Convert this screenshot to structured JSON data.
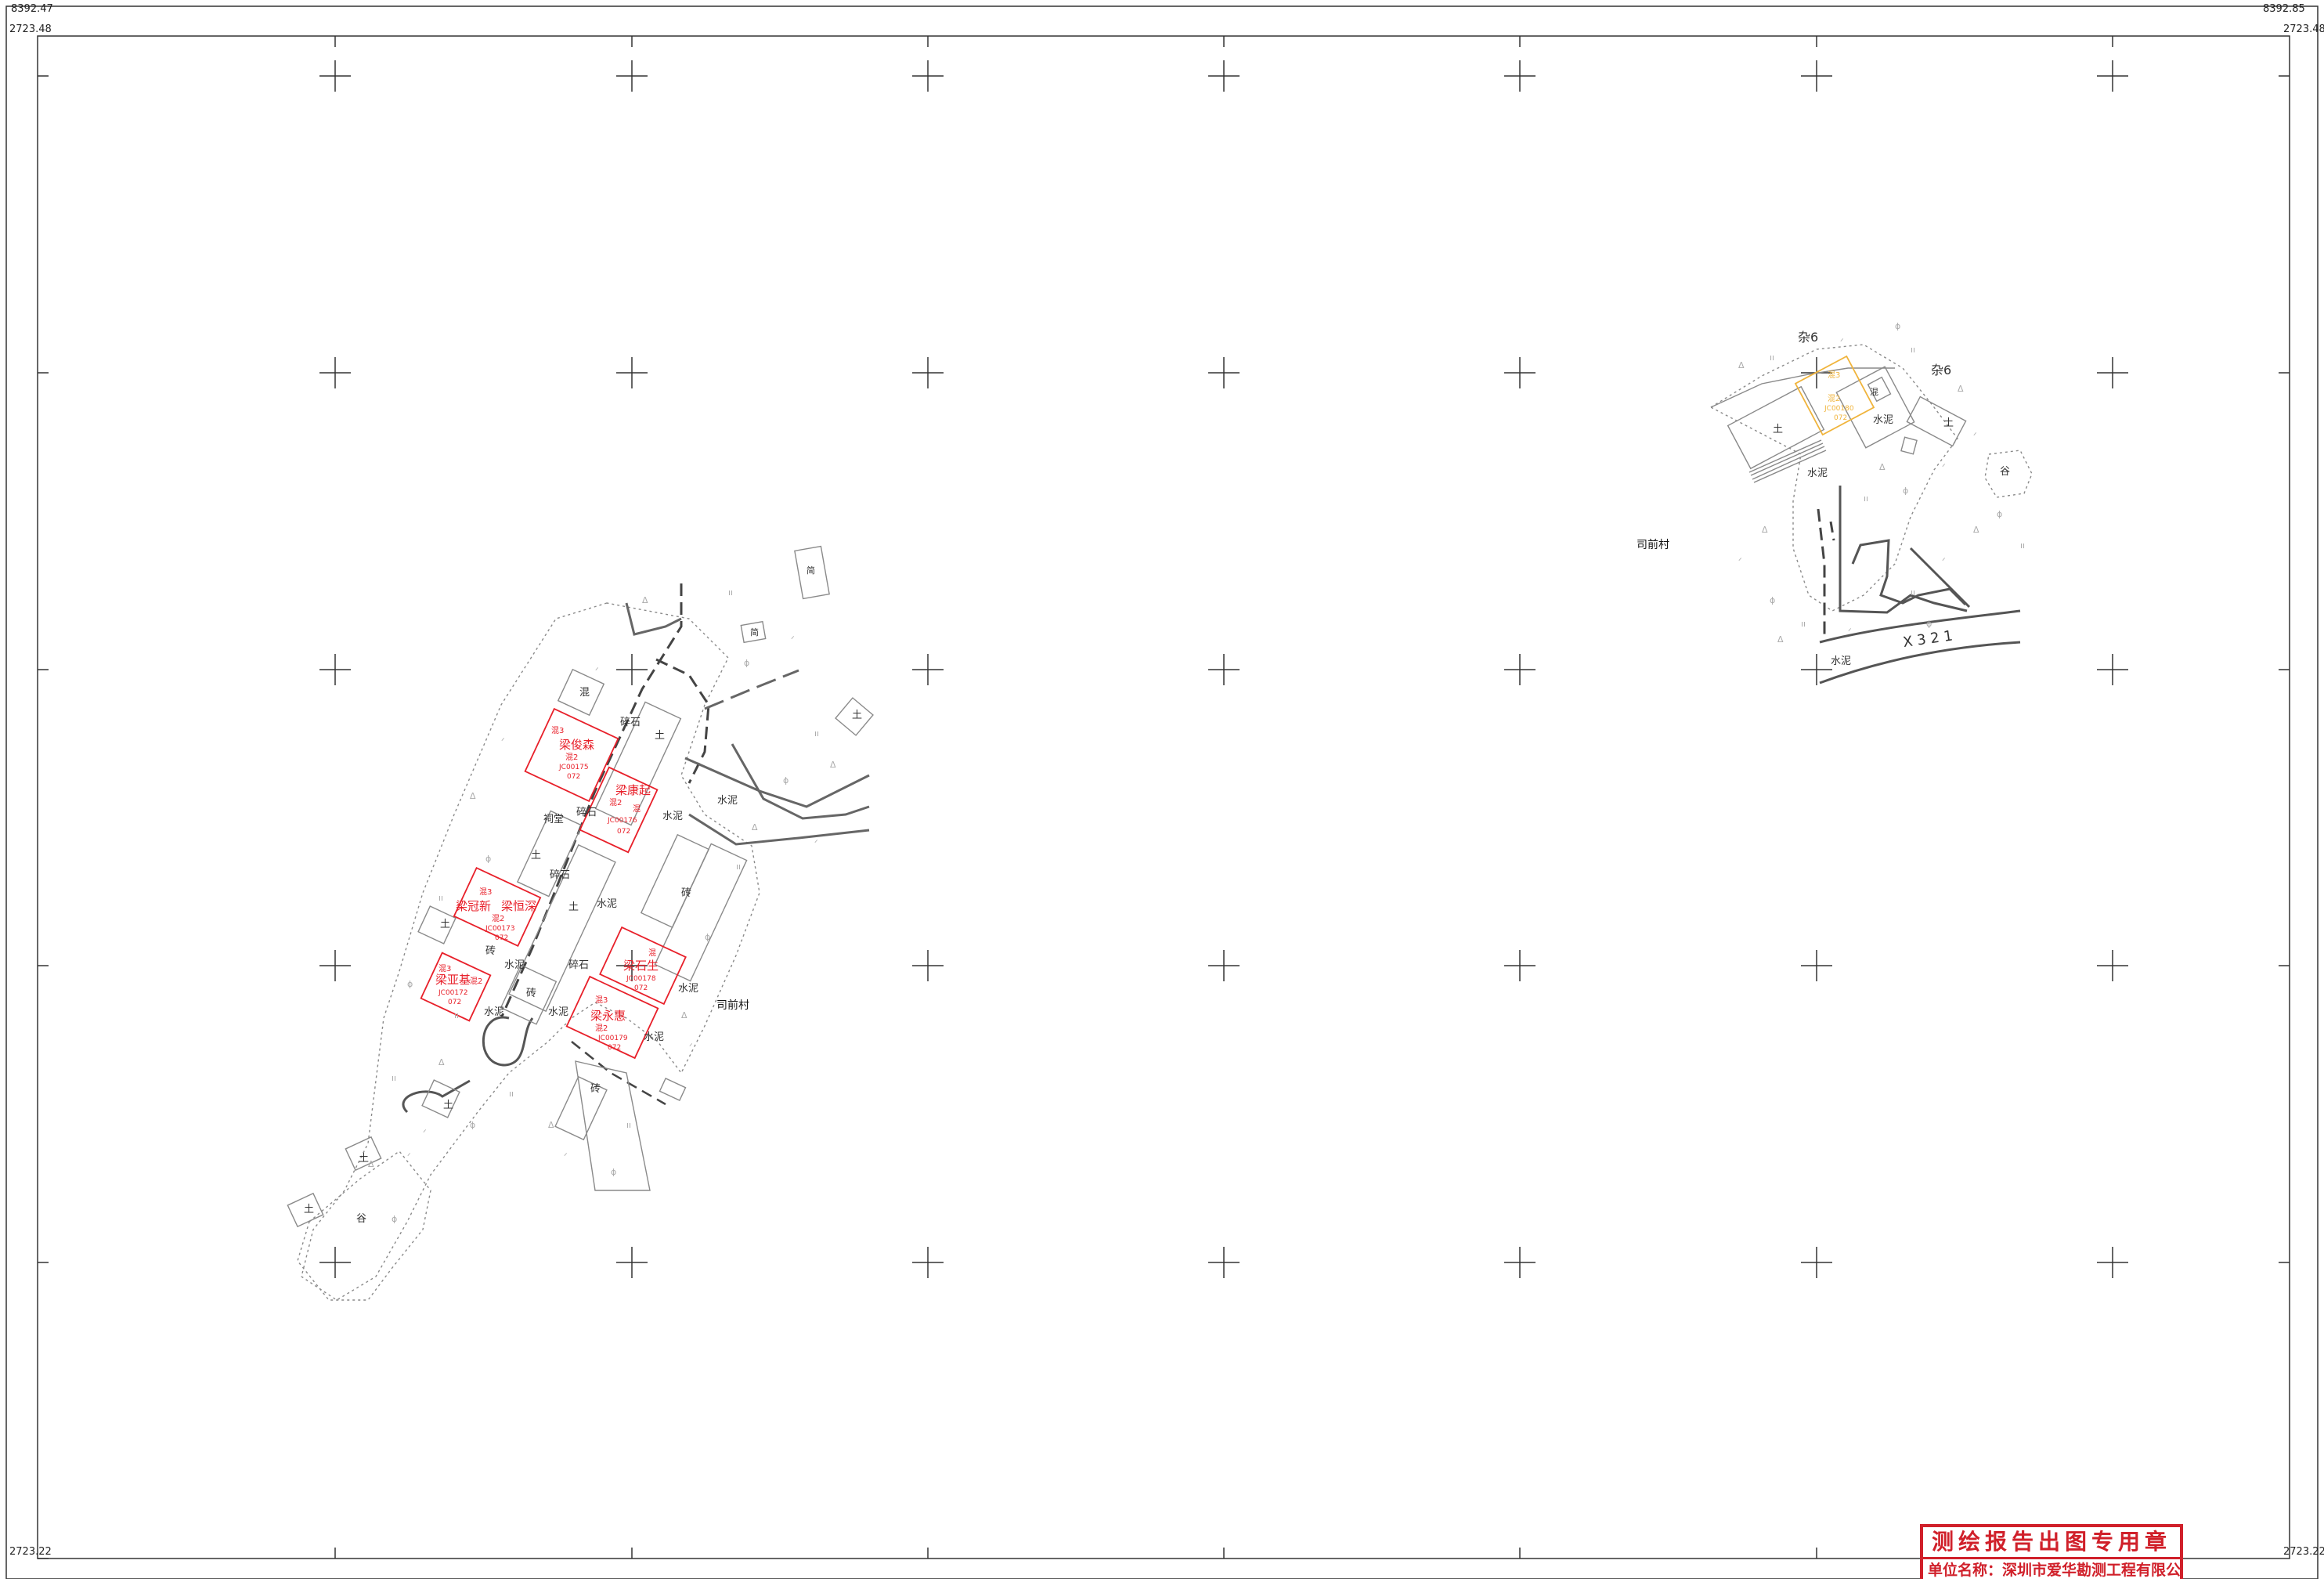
{
  "frame": {
    "coord_top_left": "8392.47",
    "coord_top_right": "8392.85",
    "coord_left_top": "2723.48",
    "coord_right_top": "2723.48",
    "coord_left_bottom": "2723.22",
    "coord_right_bottom": "2723.22"
  },
  "colors": {
    "parcel_red": "#e8202a",
    "parcel_yellow": "#f0b43c",
    "linework": "#8a8a8a",
    "ink": "#222222"
  },
  "left_cluster": {
    "village": "司前村",
    "parcels": [
      {
        "owner": "梁俊森",
        "code": "JC00175",
        "sub": "072",
        "floors_a": "混3",
        "floors_b": "混2"
      },
      {
        "owner": "梁康起",
        "code": "JC00176",
        "sub": "072",
        "floors_a": "混",
        "floors_b": "混2"
      },
      {
        "owner": "梁冠新",
        "code": "JC00173",
        "sub": "072",
        "floors_a": "混3",
        "floors_b": "混2"
      },
      {
        "owner": "梁恒深",
        "code": "",
        "sub": "",
        "floors_a": "",
        "floors_b": ""
      },
      {
        "owner": "梁亚基",
        "code": "JC00172",
        "sub": "072",
        "floors_a": "混3",
        "floors_b": "混2"
      },
      {
        "owner": "梁石生",
        "code": "JC00178",
        "sub": "072",
        "floors_a": "混",
        "floors_b": ""
      },
      {
        "owner": "梁永惠",
        "code": "JC00179",
        "sub": "072",
        "floors_a": "混3",
        "floors_b": "混2"
      }
    ],
    "labels": {
      "soil": "土",
      "concrete": "水泥",
      "gravel": "碎石",
      "brick": "砖",
      "mixed": "混",
      "shrine": "祠堂",
      "valley": "谷",
      "shed": "简"
    }
  },
  "right_cluster": {
    "village": "司前村",
    "road_code": "X 3 2 1",
    "misc_left": "杂6",
    "misc_right": "杂6",
    "parcel": {
      "floors_a": "混3",
      "floors_b": "混2",
      "code": "JC00180",
      "sub": "072"
    }
  },
  "stamp": {
    "title": "测绘报告出图专用章",
    "unit": "单位名称：深圳市爱华勘测工程有限公司"
  }
}
